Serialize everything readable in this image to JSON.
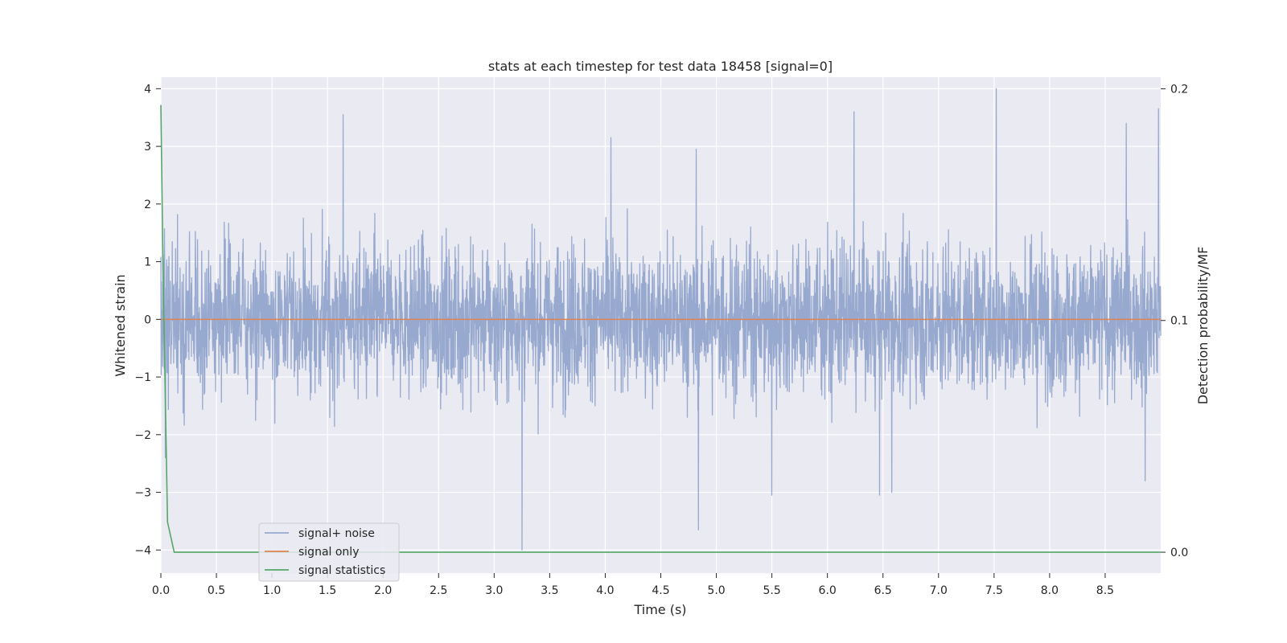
{
  "chart_data": {
    "type": "line",
    "title": "stats at each timestep for test data 18458 [signal=0]",
    "xlabel": "Time (s)",
    "ylabel": "Whitened strain",
    "y2label": "Detection probability/MF",
    "xlim": [
      0.0,
      9.0
    ],
    "ylim": [
      -4.4,
      4.2
    ],
    "y2lim": [
      -0.009,
      0.205
    ],
    "xticks": [
      0.0,
      0.5,
      1.0,
      1.5,
      2.0,
      2.5,
      3.0,
      3.5,
      4.0,
      4.5,
      5.0,
      5.5,
      6.0,
      6.5,
      7.0,
      7.5,
      8.0,
      8.5
    ],
    "xtick_labels": [
      "0.0",
      "0.5",
      "1.0",
      "1.5",
      "2.0",
      "2.5",
      "3.0",
      "3.5",
      "4.0",
      "4.5",
      "5.0",
      "5.5",
      "6.0",
      "6.5",
      "7.0",
      "7.5",
      "8.0",
      "8.5"
    ],
    "yticks": [
      4,
      3,
      2,
      1,
      0,
      -1,
      -2,
      -3,
      -4
    ],
    "ytick_labels": [
      "4",
      "3",
      "2",
      "1",
      "0",
      "−1",
      "−2",
      "−3",
      "−4"
    ],
    "y2ticks": [
      0.2,
      0.1,
      0.0
    ],
    "y2tick_labels": [
      "0.2",
      "0.1",
      "0.0"
    ],
    "grid": true,
    "legend_position": "lower-left",
    "series": [
      {
        "name": "signal+ noise",
        "axis": "left",
        "color": "#97a9cf",
        "kind": "noise",
        "x_range": [
          0.0,
          9.0
        ],
        "typical_envelope": [
          -1.5,
          1.5
        ],
        "notable_peaks": [
          {
            "x": 1.64,
            "y": 3.55
          },
          {
            "x": 4.05,
            "y": 3.15
          },
          {
            "x": 4.82,
            "y": 2.95
          },
          {
            "x": 6.24,
            "y": 3.6
          },
          {
            "x": 7.52,
            "y": 4.0
          },
          {
            "x": 8.69,
            "y": 3.4
          },
          {
            "x": 8.98,
            "y": 3.65
          }
        ],
        "notable_troughs": [
          {
            "x": 3.25,
            "y": -4.0
          },
          {
            "x": 4.84,
            "y": -3.65
          },
          {
            "x": 5.5,
            "y": -3.05
          },
          {
            "x": 6.47,
            "y": -3.05
          },
          {
            "x": 6.58,
            "y": -3.0
          },
          {
            "x": 8.86,
            "y": -2.8
          },
          {
            "x": 0.04,
            "y": -2.4
          }
        ]
      },
      {
        "name": "signal only",
        "axis": "left",
        "color": "#dd8452",
        "x": [
          0.0,
          9.0
        ],
        "y": [
          0.0,
          0.0
        ]
      },
      {
        "name": "signal statistics",
        "axis": "right",
        "color": "#55a868",
        "x": [
          0.0,
          0.02,
          0.06,
          0.12,
          0.5,
          1.0,
          2.0,
          3.0,
          4.0,
          5.0,
          6.0,
          7.0,
          8.0,
          9.0
        ],
        "y": [
          0.193,
          0.12,
          0.013,
          0.0,
          0.0,
          0.0,
          0.0,
          0.0,
          0.0,
          0.0,
          0.0,
          0.0,
          0.0,
          0.0
        ]
      }
    ]
  }
}
